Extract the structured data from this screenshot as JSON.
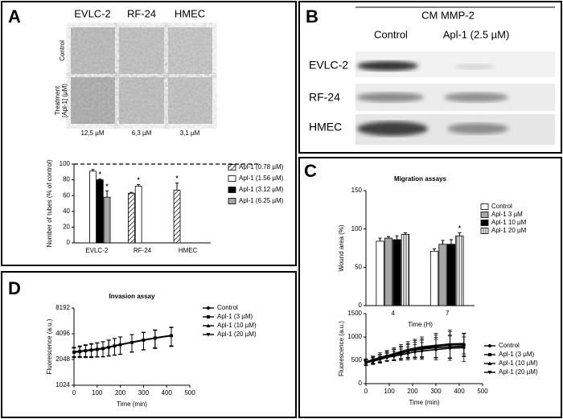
{
  "panels": [
    "A",
    "B",
    "C",
    "D"
  ],
  "panel_a": {
    "columns": [
      "EVLC-2",
      "RF-24",
      "HMEC"
    ],
    "rows": [
      "Control",
      "Treatment",
      "[Apl-1] (µM)"
    ],
    "concentrations": [
      "12,5 µM",
      "6,3 µM",
      "3,1 µM"
    ]
  },
  "panel_b": {
    "header": "CM  MMP-2",
    "columns": [
      "Control",
      "Apl-1 (2.5 µM)"
    ],
    "rows": [
      "EVLC-2",
      "RF-24",
      "HMEC"
    ]
  },
  "chart_data": [
    {
      "type": "bar",
      "categories": [
        "EVLC-2",
        "RF-24",
        "HMEC"
      ],
      "y_label": "Number of tubes (% of control)",
      "ylim": [
        0,
        100
      ],
      "yticks": [
        0,
        20,
        40,
        60,
        80,
        100
      ],
      "reference_line": 100,
      "series": [
        {
          "name": "Apl-1 (0.78 µM)",
          "color": "#ffffff",
          "pattern": "diagonal",
          "values": [
            null,
            63,
            67
          ],
          "errors": [
            null,
            1,
            9
          ]
        },
        {
          "name": "Apl-1 (1.56 µM)",
          "color": "#ffffff",
          "values": [
            91,
            72,
            null
          ],
          "errors": [
            2,
            2,
            null
          ]
        },
        {
          "name": "Apl-1 (3.12 µM)",
          "color": "#000000",
          "values": [
            80,
            null,
            null
          ],
          "errors": [
            1,
            null,
            null
          ]
        },
        {
          "name": "Apl-1 (6.25 µM)",
          "color": "#a6a6a6",
          "values": [
            58,
            null,
            null
          ],
          "errors": [
            8,
            null,
            null
          ]
        }
      ],
      "annotations": [
        {
          "text": "*",
          "series": 2,
          "category": 0
        },
        {
          "text": "*",
          "series": 3,
          "category": 0
        },
        {
          "text": "*",
          "series": 1,
          "category": 1
        },
        {
          "text": "*",
          "series": 0,
          "category": 2
        }
      ]
    },
    {
      "type": "bar",
      "title": "Migration assays",
      "categories": [
        "4",
        "7"
      ],
      "x_label": "Time (H)",
      "y_label": "Wound area (%)",
      "ylim": [
        0,
        150
      ],
      "yticks": [
        0,
        50,
        100,
        150
      ],
      "series": [
        {
          "name": "Control",
          "color": "#ffffff",
          "values": [
            84,
            71
          ],
          "errors": [
            4,
            3
          ]
        },
        {
          "name": "Apl-1 3 µM",
          "color": "#a6a6a6",
          "values": [
            88,
            80
          ],
          "errors": [
            2,
            5
          ]
        },
        {
          "name": "Apl-1 10 µM",
          "color": "#000000",
          "values": [
            86,
            80
          ],
          "errors": [
            5,
            6
          ]
        },
        {
          "name": "Apl-1 20 µM",
          "color": "#ffffff",
          "pattern": "vertical",
          "values": [
            93,
            91
          ],
          "errors": [
            2,
            4
          ]
        }
      ],
      "annotations": [
        {
          "text": "*",
          "series": 3,
          "category": 1
        }
      ]
    },
    {
      "type": "line",
      "x_label": "Time (min)",
      "y_label": "Fluorescence (a.u.)",
      "xlim": [
        0,
        500
      ],
      "xticks": [
        0,
        100,
        200,
        300,
        400,
        500
      ],
      "ylim": [
        0,
        1500
      ],
      "yticks": [
        0,
        500,
        1000,
        1500
      ],
      "x": [
        0,
        30,
        60,
        90,
        120,
        150,
        180,
        210,
        240,
        300,
        360,
        420
      ],
      "series": [
        {
          "name": "Control",
          "color": "#000000",
          "marker": "circle",
          "values": [
            450,
            480,
            520,
            560,
            590,
            620,
            650,
            680,
            700,
            730,
            760,
            770
          ],
          "errors": [
            60,
            70,
            80,
            90,
            100,
            120,
            140,
            160,
            180,
            220,
            260,
            300
          ]
        },
        {
          "name": "Apl-1 (3 µM)",
          "color": "#000000",
          "marker": "square",
          "values": [
            460,
            500,
            540,
            590,
            620,
            660,
            700,
            740,
            760,
            800,
            830,
            830
          ],
          "errors": [
            70,
            80,
            90,
            100,
            120,
            140,
            160,
            180,
            200,
            240,
            280,
            250
          ]
        },
        {
          "name": "Apl-1 (10 µM)",
          "color": "#000000",
          "marker": "triangle-up",
          "values": [
            470,
            510,
            560,
            600,
            640,
            690,
            730,
            760,
            790,
            820,
            850,
            860
          ],
          "errors": [
            60,
            80,
            100,
            110,
            130,
            150,
            170,
            190,
            210,
            260,
            300,
            220
          ]
        },
        {
          "name": "Apl-1 (20 µM)",
          "color": "#000000",
          "marker": "triangle-down",
          "values": [
            460,
            500,
            550,
            580,
            620,
            650,
            690,
            720,
            740,
            770,
            790,
            800
          ],
          "errors": [
            50,
            60,
            80,
            90,
            110,
            130,
            150,
            170,
            190,
            220,
            250,
            200
          ]
        }
      ]
    },
    {
      "type": "line",
      "title": "Invasion assay",
      "x_label": "Time (min)",
      "y_label": "Fluorescence (a.u.)",
      "log_base": 2,
      "xlim": [
        0,
        500
      ],
      "xticks": [
        0,
        100,
        200,
        300,
        400,
        500
      ],
      "ylim": [
        1024,
        8192
      ],
      "yticks": [
        1024,
        2048,
        4096,
        8192
      ],
      "x": [
        0,
        25,
        50,
        75,
        100,
        125,
        150,
        175,
        200,
        250,
        300,
        350,
        420
      ],
      "series": [
        {
          "name": "Control",
          "color": "#000000",
          "marker": "circle",
          "values": [
            2500,
            2550,
            2600,
            2650,
            2700,
            2750,
            2850,
            2950,
            3050,
            3250,
            3450,
            3650,
            3900
          ],
          "errors": [
            350,
            400,
            450,
            500,
            500,
            550,
            600,
            650,
            700,
            750,
            800,
            900,
            1000
          ]
        },
        {
          "name": "Apl-1 (3 µM)",
          "color": "#000000",
          "marker": "square",
          "values": [
            2480,
            2530,
            2580,
            2630,
            2680,
            2740,
            2840,
            2940,
            3040,
            3240,
            3440,
            3640,
            3880
          ],
          "errors": [
            300,
            350,
            400,
            450,
            500,
            550,
            600,
            650,
            700,
            750,
            800,
            850,
            950
          ]
        },
        {
          "name": "Apl-1 (10 µM)",
          "color": "#000000",
          "marker": "triangle-up",
          "values": [
            2520,
            2570,
            2620,
            2670,
            2720,
            2770,
            2870,
            2970,
            3070,
            3270,
            3470,
            3670,
            3920
          ],
          "errors": [
            300,
            350,
            400,
            450,
            500,
            550,
            600,
            650,
            700,
            750,
            800,
            850,
            950
          ]
        },
        {
          "name": "Apl-1 (20 µM)",
          "color": "#000000",
          "marker": "triangle-down",
          "values": [
            2490,
            2540,
            2590,
            2640,
            2690,
            2750,
            2850,
            2950,
            3050,
            3250,
            3450,
            3650,
            3890
          ],
          "errors": [
            300,
            350,
            400,
            450,
            500,
            550,
            600,
            650,
            700,
            750,
            800,
            850,
            950
          ]
        }
      ]
    }
  ]
}
